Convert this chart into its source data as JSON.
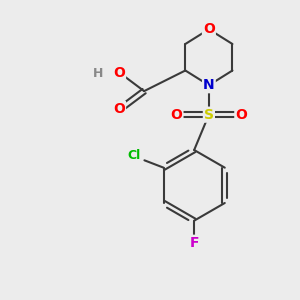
{
  "background_color": "#ececec",
  "atom_colors": {
    "O": "#ff0000",
    "N": "#0000cd",
    "S": "#cccc00",
    "Cl": "#00bb00",
    "F": "#cc00cc",
    "C": "#3a3a3a",
    "H": "#888888"
  },
  "bond_color": "#3a3a3a",
  "bond_width": 1.5,
  "figsize": [
    3.0,
    3.0
  ],
  "dpi": 100
}
